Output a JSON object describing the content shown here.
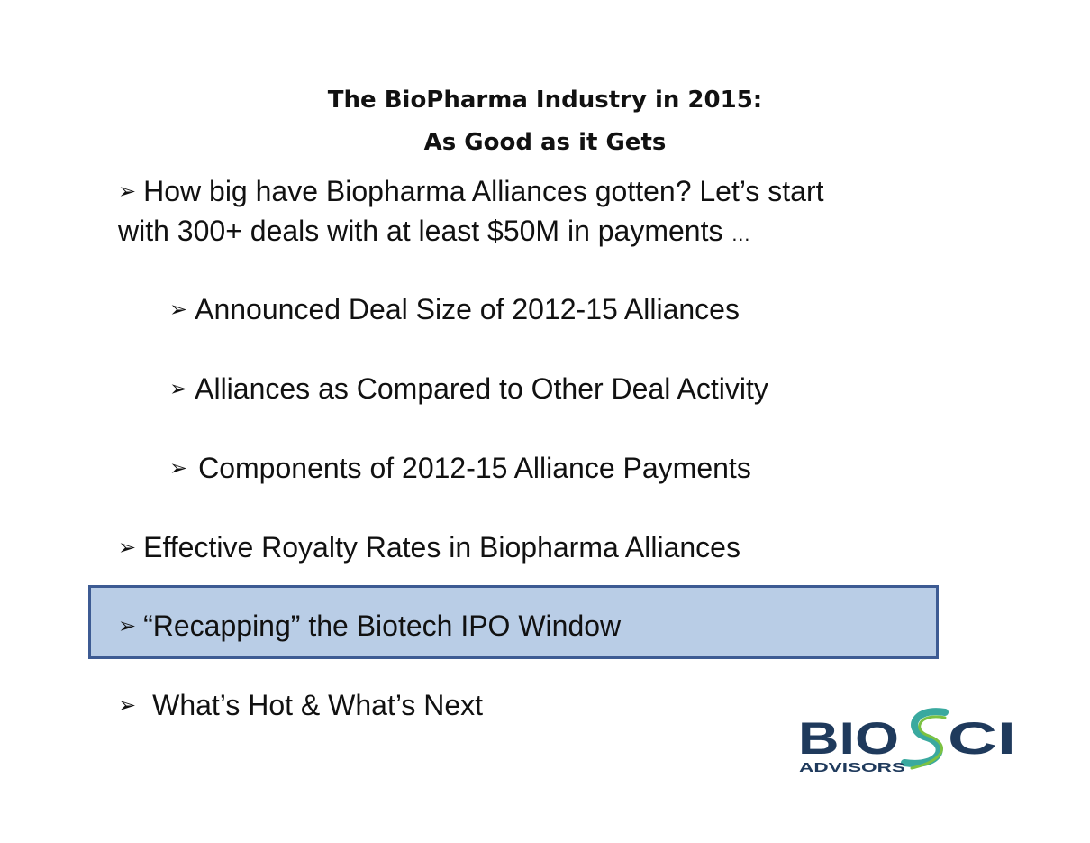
{
  "slide": {
    "title_line1": "The BioPharma Industry in 2015:",
    "title_line2": "As Good as it Gets",
    "bullet_glyph": "➢",
    "intro_line1": "How big have Biopharma Alliances gotten?  Let’s start",
    "intro_line2_main": "with 300+ deals with at least $50M in payments",
    "intro_line2_ellipsis": "…",
    "sub_items": [
      "Announced Deal Size of 2012-15 Alliances",
      "Alliances as Compared to Other Deal Activity",
      "Components of 2012-15 Alliance Payments"
    ],
    "items": [
      "Effective Royalty Rates in Biopharma Alliances",
      "“Recapping” the Biotech IPO Window",
      "What’s Hot & What’s Next"
    ]
  },
  "logo": {
    "word_bio": "BIO",
    "word_s": "S",
    "word_ci": "CI",
    "subtitle": "ADVISORS",
    "navy": "#1f3a5c",
    "teal": "#3aa99f",
    "green": "#7cc242"
  },
  "colors": {
    "highlight_fill": "#b9cde6",
    "highlight_border": "#3d5b93"
  }
}
